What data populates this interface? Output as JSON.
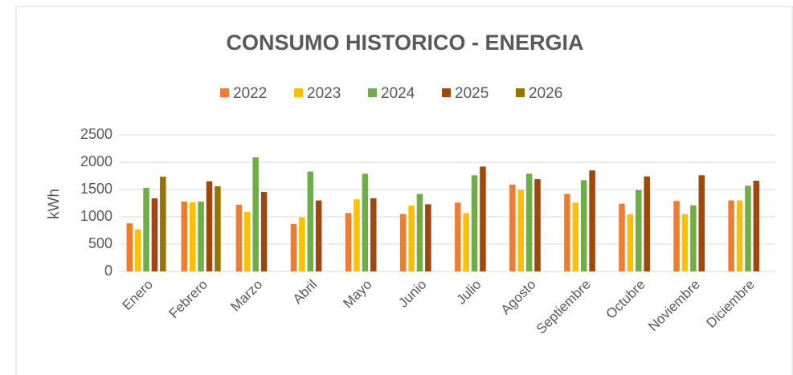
{
  "chart_data": {
    "type": "bar",
    "title": "CONSUMO HISTORICO - ENERGIA",
    "ylabel": "kWh",
    "categories": [
      "Enero",
      "Febrero",
      "Marzo",
      "Abril",
      "Mayo",
      "Junio",
      "Julio",
      "Agosto",
      "Septiembre",
      "Octubre",
      "Noviembre",
      "Diciembre"
    ],
    "series": [
      {
        "name": "2022",
        "color": "#ED7D31",
        "values": [
          880,
          1280,
          1220,
          870,
          1070,
          1050,
          1260,
          1590,
          1420,
          1240,
          1290,
          1300
        ]
      },
      {
        "name": "2023",
        "color": "#FFC000",
        "values": [
          770,
          1265,
          1090,
          990,
          1320,
          1210,
          1070,
          1490,
          1260,
          1050,
          1050,
          1300
        ]
      },
      {
        "name": "2024",
        "color": "#70AD47",
        "values": [
          1530,
          1280,
          2090,
          1830,
          1790,
          1420,
          1760,
          1790,
          1670,
          1490,
          1210,
          1570
        ]
      },
      {
        "name": "2025",
        "color": "#9E480E",
        "values": [
          1340,
          1650,
          1455,
          1300,
          1340,
          1230,
          1920,
          1690,
          1850,
          1740,
          1760,
          1660
        ]
      },
      {
        "name": "2026",
        "color": "#997300",
        "values": [
          1735,
          1560,
          null,
          null,
          null,
          null,
          null,
          null,
          null,
          null,
          null,
          null
        ]
      }
    ],
    "ylim": [
      0,
      2500
    ],
    "yticks": [
      0,
      500,
      1000,
      1500,
      2000,
      2500
    ],
    "grid": true,
    "legend": "top"
  }
}
